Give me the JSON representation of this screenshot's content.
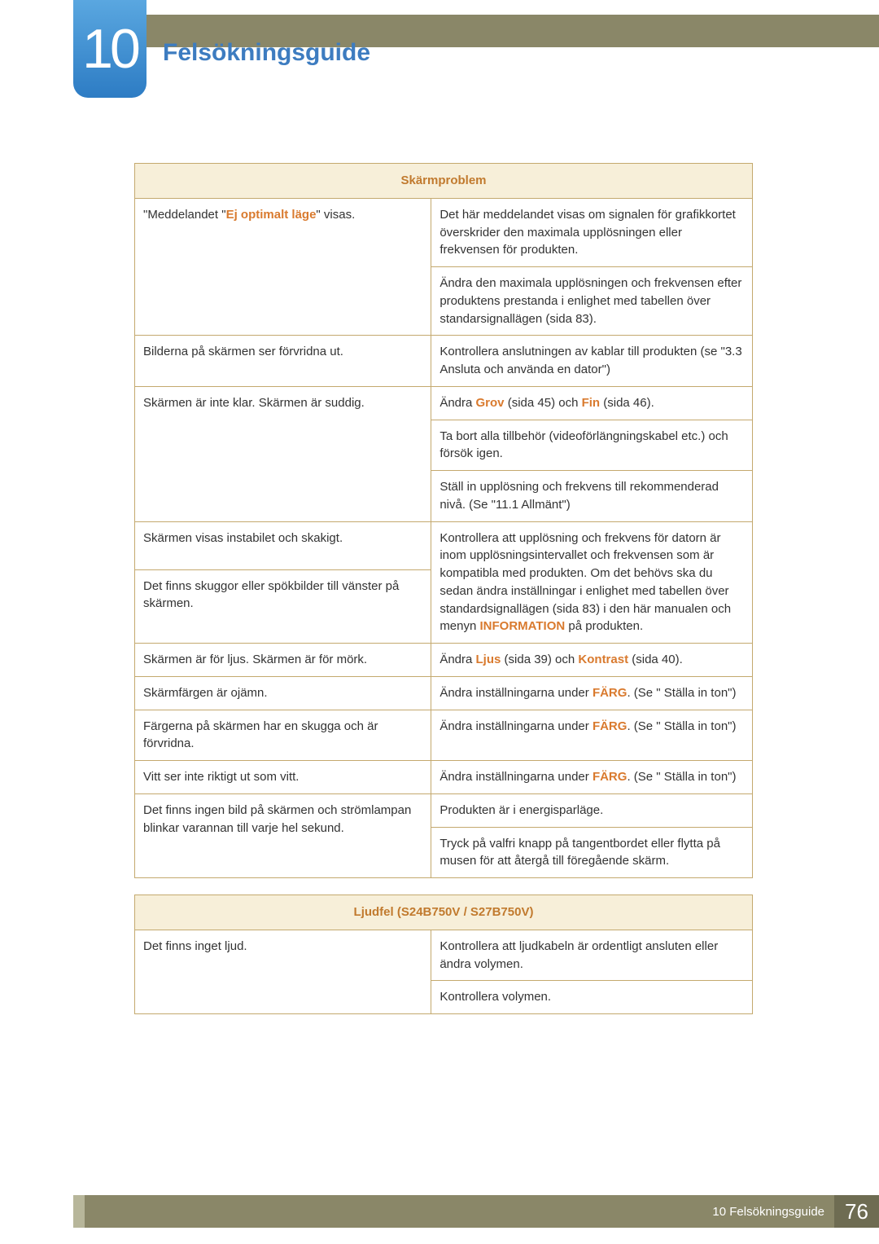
{
  "chapter": {
    "number": "10",
    "title": "Felsökningsguide"
  },
  "table1": {
    "header": "Skärmproblem",
    "rows": [
      {
        "left": [
          {
            "t": "\"Meddelandet \""
          },
          {
            "t": "Ej optimalt läge",
            "hl": true
          },
          {
            "t": "\" visas."
          }
        ],
        "rights": [
          [
            {
              "t": "Det här meddelandet visas om signalen för grafikkortet överskrider den maximala upplösningen eller frekvensen för produkten."
            }
          ],
          [
            {
              "t": "Ändra den maximala upplösningen och frekvensen efter produktens prestanda i enlighet med tabellen över standarsignallägen (sida 83)."
            }
          ]
        ]
      },
      {
        "left": [
          {
            "t": "Bilderna på skärmen ser förvridna ut."
          }
        ],
        "rights": [
          [
            {
              "t": "Kontrollera anslutningen av kablar till produkten (se \"3.3 Ansluta och använda en dator\")"
            }
          ]
        ]
      },
      {
        "left": [
          {
            "t": "Skärmen är inte klar. Skärmen är suddig."
          }
        ],
        "rights": [
          [
            {
              "t": "Ändra "
            },
            {
              "t": "Grov",
              "hl": true
            },
            {
              "t": " (sida 45) och "
            },
            {
              "t": "Fin",
              "hl": true
            },
            {
              "t": " (sida 46)."
            }
          ],
          [
            {
              "t": "Ta bort alla tillbehör (videoförlängningskabel etc.) och försök igen."
            }
          ],
          [
            {
              "t": "Ställ in upplösning och frekvens till rekommenderad nivå. (Se \"11.1 Allmänt\")"
            }
          ]
        ]
      },
      {
        "leftGroup": [
          [
            {
              "t": "Skärmen visas instabilet och skakigt."
            }
          ],
          [
            {
              "t": "Det finns skuggor eller spökbilder till vänster på skärmen."
            }
          ]
        ],
        "rights": [
          [
            {
              "t": "Kontrollera att upplösning och frekvens för datorn är inom upplösningsintervallet och frekvensen som är kompatibla med produkten. Om det behövs ska du sedan ändra inställningar i enlighet med tabellen över standardsignallägen (sida 83) i den här manualen och menyn "
            },
            {
              "t": "INFORMATION",
              "hl": true
            },
            {
              "t": " på produkten."
            }
          ]
        ]
      },
      {
        "left": [
          {
            "t": "Skärmen är för ljus. Skärmen är för mörk."
          }
        ],
        "rights": [
          [
            {
              "t": "Ändra "
            },
            {
              "t": "Ljus",
              "hl": true
            },
            {
              "t": " (sida 39) och "
            },
            {
              "t": "Kontrast",
              "hl": true
            },
            {
              "t": " (sida 40)."
            }
          ]
        ]
      },
      {
        "left": [
          {
            "t": "Skärmfärgen är ojämn."
          }
        ],
        "rights": [
          [
            {
              "t": "Ändra inställningarna under "
            },
            {
              "t": "FÄRG",
              "hl": true
            },
            {
              "t": ". (Se \" Ställa in ton\")"
            }
          ]
        ]
      },
      {
        "left": [
          {
            "t": "Färgerna på skärmen har en skugga och är förvridna."
          }
        ],
        "rights": [
          [
            {
              "t": "Ändra inställningarna under "
            },
            {
              "t": "FÄRG",
              "hl": true
            },
            {
              "t": ". (Se \" Ställa in ton\")"
            }
          ]
        ]
      },
      {
        "left": [
          {
            "t": "Vitt ser inte riktigt ut som vitt."
          }
        ],
        "rights": [
          [
            {
              "t": "Ändra inställningarna under "
            },
            {
              "t": "FÄRG",
              "hl": true
            },
            {
              "t": ". (Se \" Ställa in ton\")"
            }
          ]
        ]
      },
      {
        "left": [
          {
            "t": "Det finns ingen bild på skärmen och strömlampan blinkar varannan till varje hel sekund."
          }
        ],
        "rights": [
          [
            {
              "t": "Produkten är i energisparläge."
            }
          ],
          [
            {
              "t": "Tryck på valfri knapp på tangentbordet eller flytta på musen för att återgå till föregående skärm."
            }
          ]
        ]
      }
    ]
  },
  "table2": {
    "header": "Ljudfel (S24B750V / S27B750V)",
    "rows": [
      {
        "left": [
          {
            "t": "Det finns inget ljud."
          }
        ],
        "rights": [
          [
            {
              "t": "Kontrollera att ljudkabeln är ordentligt ansluten eller ändra volymen."
            }
          ],
          [
            {
              "t": "Kontrollera volymen."
            }
          ]
        ]
      }
    ]
  },
  "footer": {
    "label": "10 Felsökningsguide",
    "page": "76"
  }
}
